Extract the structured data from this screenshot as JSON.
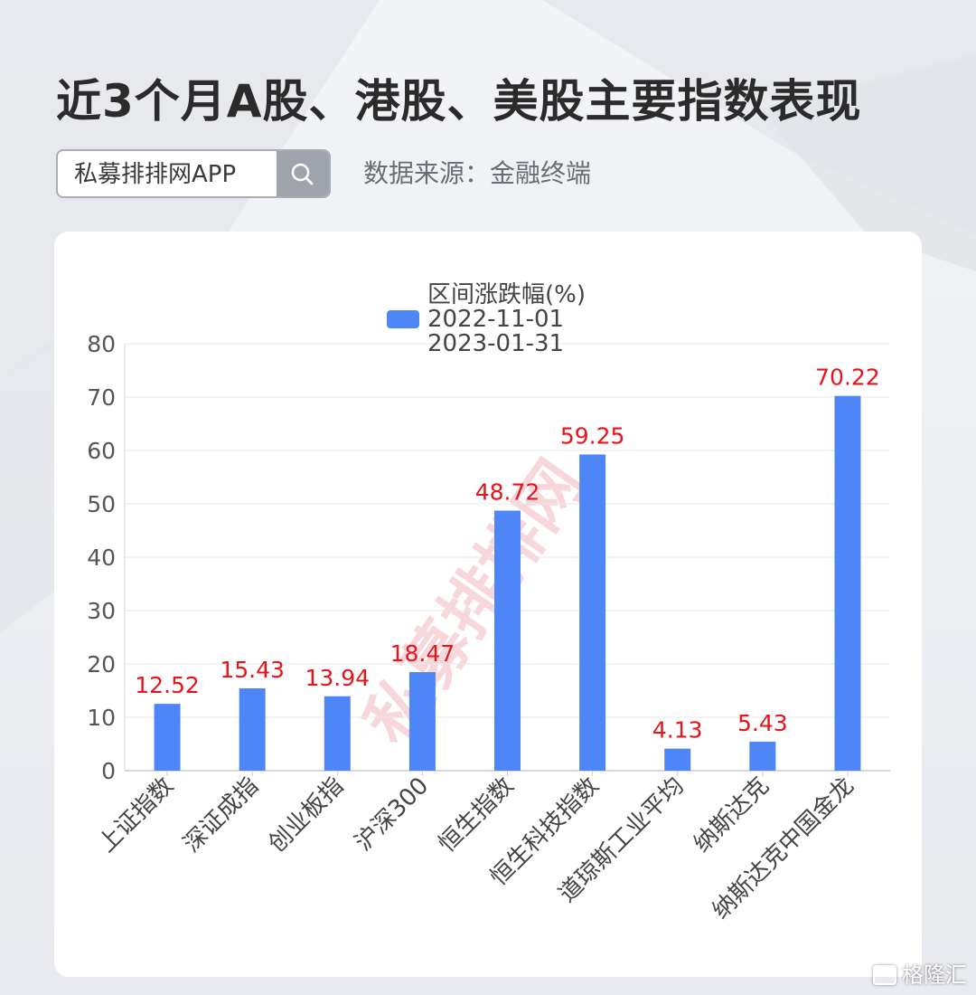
{
  "header": {
    "title": "近3个月A股、港股、美股主要指数表现",
    "search_text": "私募排排网APP",
    "source": "数据来源：金融终端"
  },
  "chart_data": {
    "type": "bar",
    "legend_title": "区间涨跌幅(%)",
    "series": [
      {
        "name": "2022-11-01\n2023-01-31",
        "color": "#4f86f7",
        "values": [
          12.52,
          15.43,
          13.94,
          18.47,
          48.72,
          59.25,
          4.13,
          5.43,
          70.22
        ]
      }
    ],
    "categories": [
      "上证指数",
      "深证成指",
      "创业板指",
      "沪深300",
      "恒生指数",
      "恒生科技指数",
      "道琼斯工业平均",
      "纳斯达克",
      "纳斯达克中国金龙"
    ],
    "ylim": [
      0,
      80
    ],
    "yticks": [
      0,
      10,
      20,
      30,
      40,
      50,
      60,
      70,
      80
    ],
    "grid": true,
    "legend_position": "top-center",
    "data_label_color": "#e8131b",
    "watermark": "私募排排网"
  },
  "brand": {
    "name": "格隆汇"
  }
}
